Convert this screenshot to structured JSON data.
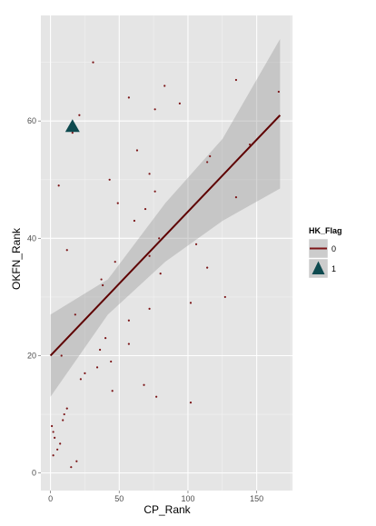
{
  "chart_data": {
    "type": "scatter",
    "xlabel": "CP_Rank",
    "ylabel": "OKFN_Rank",
    "xlim": [
      -7,
      176
    ],
    "ylim": [
      -3,
      78
    ],
    "x_ticks": [
      0,
      50,
      100,
      150
    ],
    "y_ticks": [
      0,
      20,
      40,
      60
    ],
    "x_tick_labels": [
      "0",
      "50",
      "100",
      "150"
    ],
    "y_tick_labels": [
      "0",
      "20",
      "40",
      "60"
    ],
    "grid": true,
    "legend_placement": "right",
    "legend": {
      "title": "HK_Flag",
      "entries": [
        {
          "label": "0",
          "symbol": "line-point",
          "color": "#7b1416"
        },
        {
          "label": "1",
          "symbol": "triangle",
          "color": "#0e4a4f"
        }
      ]
    },
    "series": [
      {
        "name": "0",
        "marker": "point",
        "color": "#7b1416",
        "points": [
          [
            1,
            8
          ],
          [
            2,
            3
          ],
          [
            2,
            7
          ],
          [
            3,
            6
          ],
          [
            5,
            4
          ],
          [
            6,
            49
          ],
          [
            7,
            5
          ],
          [
            8,
            20
          ],
          [
            9,
            9
          ],
          [
            10,
            10
          ],
          [
            12,
            38
          ],
          [
            12,
            11
          ],
          [
            15,
            1
          ],
          [
            16,
            58
          ],
          [
            18,
            27
          ],
          [
            19,
            2
          ],
          [
            21,
            61
          ],
          [
            22,
            16
          ],
          [
            25,
            17
          ],
          [
            31,
            70
          ],
          [
            34,
            18
          ],
          [
            36,
            21
          ],
          [
            37,
            33
          ],
          [
            38,
            32
          ],
          [
            40,
            23
          ],
          [
            43,
            50
          ],
          [
            44,
            19
          ],
          [
            45,
            14
          ],
          [
            47,
            36
          ],
          [
            49,
            46
          ],
          [
            57,
            64
          ],
          [
            57,
            26
          ],
          [
            57,
            22
          ],
          [
            61,
            43
          ],
          [
            63,
            55
          ],
          [
            68,
            15
          ],
          [
            69,
            45
          ],
          [
            72,
            51
          ],
          [
            72,
            37
          ],
          [
            72,
            28
          ],
          [
            76,
            62
          ],
          [
            76,
            48
          ],
          [
            77,
            13
          ],
          [
            79,
            40
          ],
          [
            80,
            34
          ],
          [
            83,
            66
          ],
          [
            94,
            63
          ],
          [
            102,
            29
          ],
          [
            102,
            12
          ],
          [
            106,
            39
          ],
          [
            114,
            53
          ],
          [
            114,
            35
          ],
          [
            116,
            54
          ],
          [
            127,
            30
          ],
          [
            135,
            67
          ],
          [
            135,
            47
          ],
          [
            145,
            56
          ],
          [
            166,
            65
          ]
        ]
      },
      {
        "name": "1",
        "marker": "triangle",
        "color": "#0e4a4f",
        "points": [
          [
            16,
            59
          ]
        ]
      }
    ],
    "trend_line": {
      "series": "0",
      "color": "#5e0000",
      "x": [
        0,
        167
      ],
      "y": [
        20,
        61
      ]
    },
    "confidence_band": {
      "color": "#999999",
      "x": [
        0,
        41.75,
        83.5,
        125.25,
        167
      ],
      "lower": [
        13,
        27,
        36,
        43,
        48.5
      ],
      "upper": [
        27,
        33,
        46,
        57,
        74
      ]
    }
  }
}
